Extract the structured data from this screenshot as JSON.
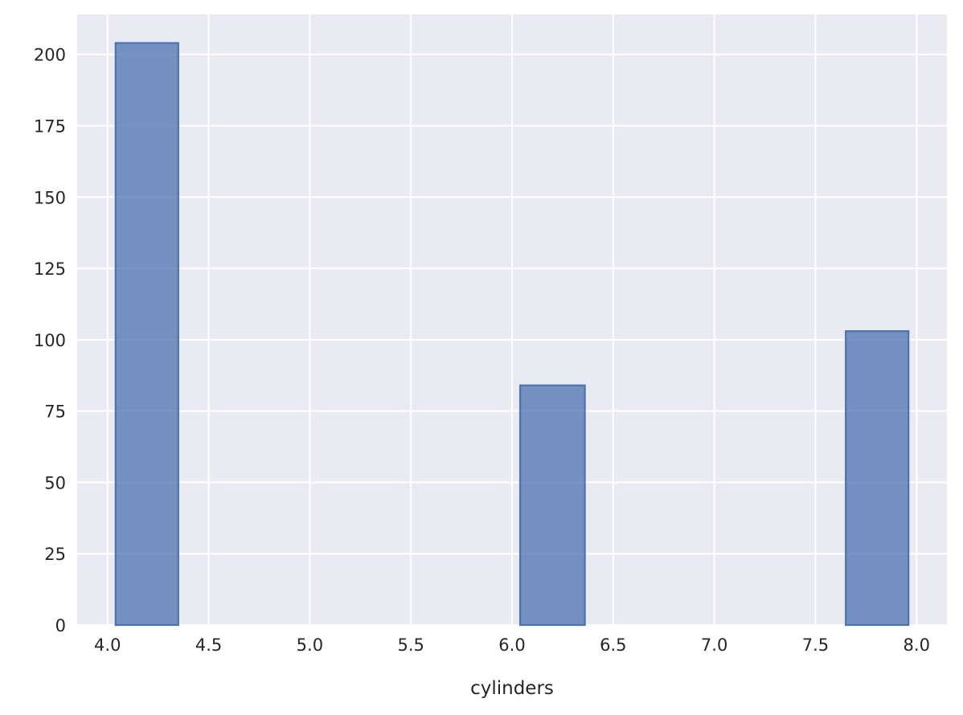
{
  "chart_data": {
    "type": "bar",
    "title": "",
    "xlabel": "cylinders",
    "ylabel": "",
    "xlim": [
      3.85,
      8.15
    ],
    "ylim": [
      0,
      214
    ],
    "grid": true,
    "legend": "none",
    "colors": {
      "background": "#eaeaf2",
      "grid": "#ffffff",
      "bar": "#4c72b0"
    },
    "x_ticks": [
      {
        "value": 4.0,
        "label": "4.0"
      },
      {
        "value": 4.5,
        "label": "4.5"
      },
      {
        "value": 5.0,
        "label": "5.0"
      },
      {
        "value": 5.5,
        "label": "5.5"
      },
      {
        "value": 6.0,
        "label": "6.0"
      },
      {
        "value": 6.5,
        "label": "6.5"
      },
      {
        "value": 7.0,
        "label": "7.0"
      },
      {
        "value": 7.5,
        "label": "7.5"
      },
      {
        "value": 8.0,
        "label": "8.0"
      }
    ],
    "y_ticks": [
      {
        "value": 0,
        "label": "0"
      },
      {
        "value": 25,
        "label": "25"
      },
      {
        "value": 50,
        "label": "50"
      },
      {
        "value": 75,
        "label": "75"
      },
      {
        "value": 100,
        "label": "100"
      },
      {
        "value": 125,
        "label": "125"
      },
      {
        "value": 150,
        "label": "150"
      },
      {
        "value": 175,
        "label": "175"
      },
      {
        "value": 200,
        "label": "200"
      }
    ],
    "bins": [
      {
        "x0": 4.04,
        "x1": 4.35,
        "count": 204
      },
      {
        "x0": 6.04,
        "x1": 6.36,
        "count": 84
      },
      {
        "x0": 7.65,
        "x1": 7.96,
        "count": 103
      }
    ]
  }
}
